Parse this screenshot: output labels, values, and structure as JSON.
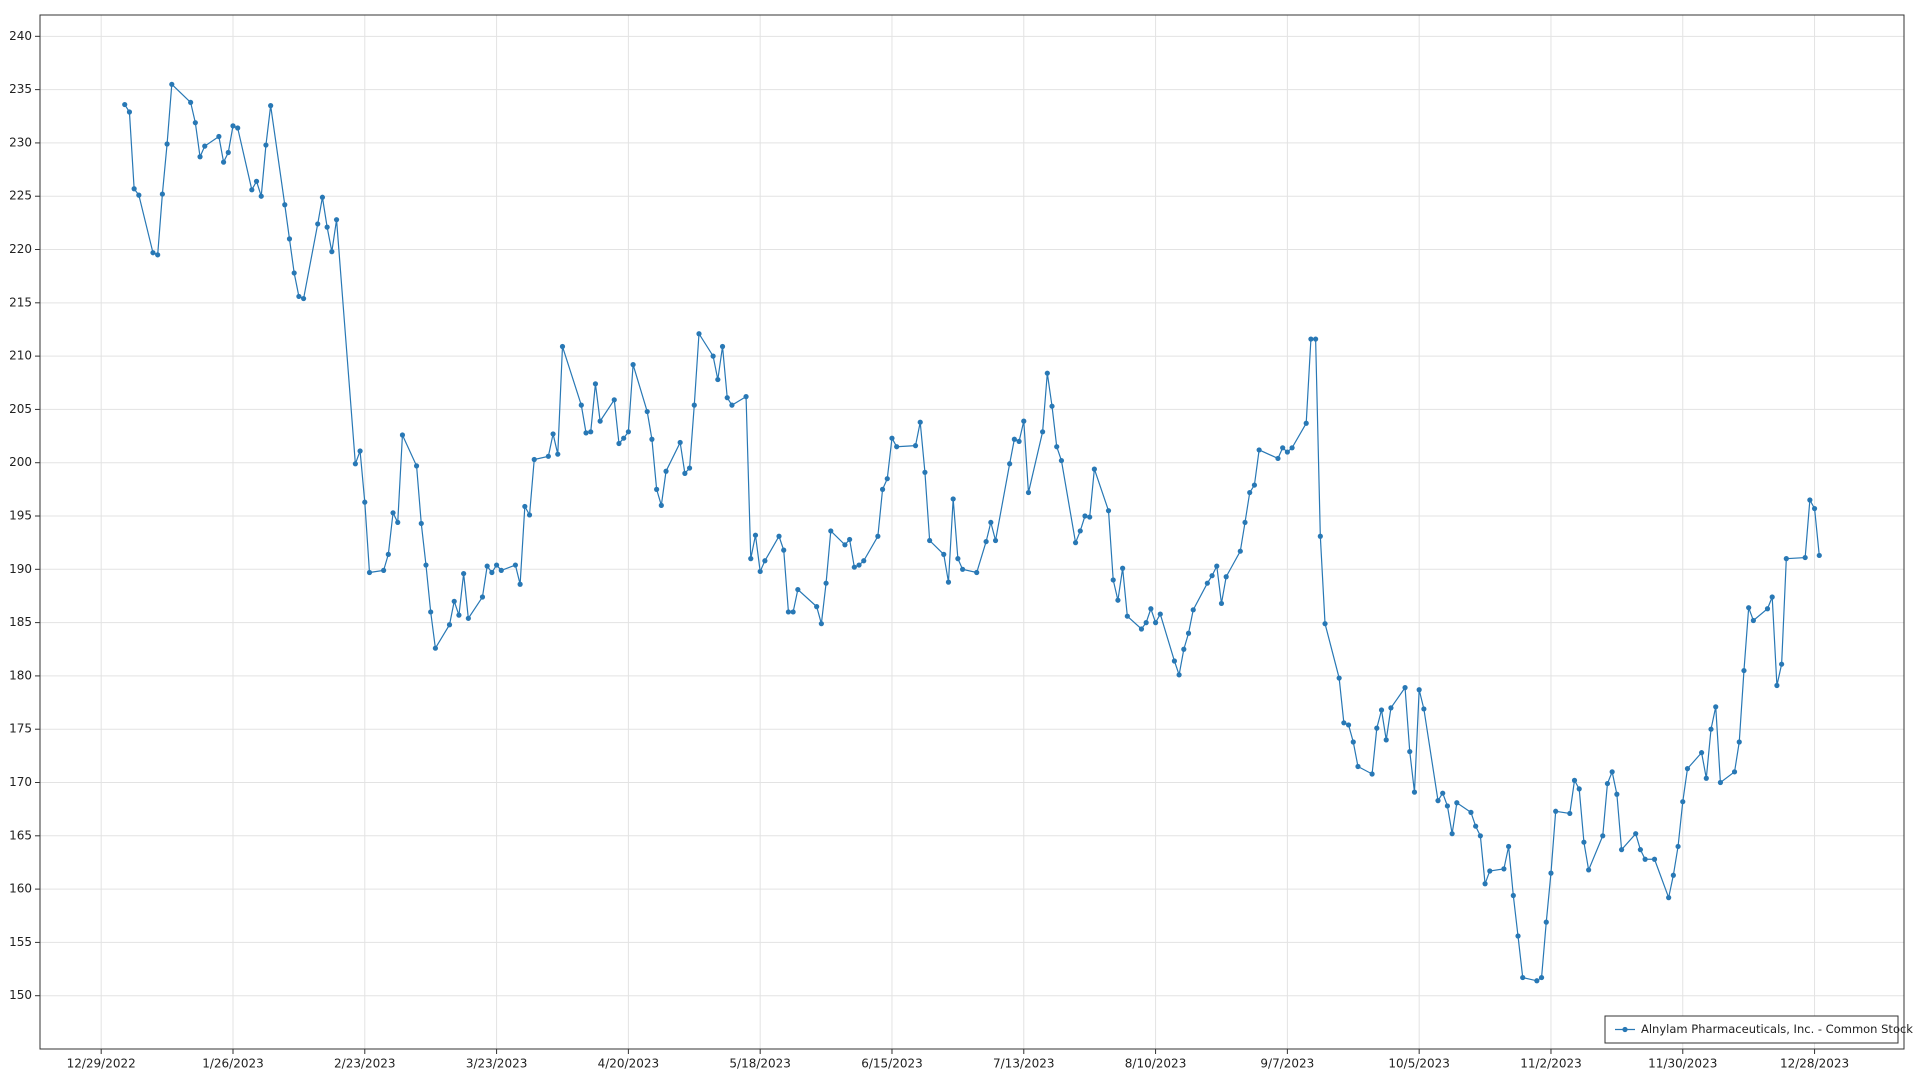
{
  "chart_data": {
    "type": "line",
    "x": [
      "1/3/2023",
      "1/4/2023",
      "1/5/2023",
      "1/6/2023",
      "1/9/2023",
      "1/10/2023",
      "1/11/2023",
      "1/12/2023",
      "1/13/2023",
      "1/17/2023",
      "1/18/2023",
      "1/19/2023",
      "1/20/2023",
      "1/23/2023",
      "1/24/2023",
      "1/25/2023",
      "1/26/2023",
      "1/27/2023",
      "1/30/2023",
      "1/31/2023",
      "2/1/2023",
      "2/2/2023",
      "2/3/2023",
      "2/6/2023",
      "2/7/2023",
      "2/8/2023",
      "2/9/2023",
      "2/10/2023",
      "2/13/2023",
      "2/14/2023",
      "2/15/2023",
      "2/16/2023",
      "2/17/2023",
      "2/21/2023",
      "2/22/2023",
      "2/23/2023",
      "2/24/2023",
      "2/27/2023",
      "2/28/2023",
      "3/1/2023",
      "3/2/2023",
      "3/3/2023",
      "3/6/2023",
      "3/7/2023",
      "3/8/2023",
      "3/9/2023",
      "3/10/2023",
      "3/13/2023",
      "3/14/2023",
      "3/15/2023",
      "3/16/2023",
      "3/17/2023",
      "3/20/2023",
      "3/21/2023",
      "3/22/2023",
      "3/23/2023",
      "3/24/2023",
      "3/27/2023",
      "3/28/2023",
      "3/29/2023",
      "3/30/2023",
      "3/31/2023",
      "4/3/2023",
      "4/4/2023",
      "4/5/2023",
      "4/6/2023",
      "4/10/2023",
      "4/11/2023",
      "4/12/2023",
      "4/13/2023",
      "4/14/2023",
      "4/17/2023",
      "4/18/2023",
      "4/19/2023",
      "4/20/2023",
      "4/21/2023",
      "4/24/2023",
      "4/25/2023",
      "4/26/2023",
      "4/27/2023",
      "4/28/2023",
      "5/1/2023",
      "5/2/2023",
      "5/3/2023",
      "5/4/2023",
      "5/5/2023",
      "5/8/2023",
      "5/9/2023",
      "5/10/2023",
      "5/11/2023",
      "5/12/2023",
      "5/15/2023",
      "5/16/2023",
      "5/17/2023",
      "5/18/2023",
      "5/19/2023",
      "5/22/2023",
      "5/23/2023",
      "5/24/2023",
      "5/25/2023",
      "5/26/2023",
      "5/30/2023",
      "5/31/2023",
      "6/1/2023",
      "6/2/2023",
      "6/5/2023",
      "6/6/2023",
      "6/7/2023",
      "6/8/2023",
      "6/9/2023",
      "6/12/2023",
      "6/13/2023",
      "6/14/2023",
      "6/15/2023",
      "6/16/2023",
      "6/20/2023",
      "6/21/2023",
      "6/22/2023",
      "6/23/2023",
      "6/26/2023",
      "6/27/2023",
      "6/28/2023",
      "6/29/2023",
      "6/30/2023",
      "7/3/2023",
      "7/5/2023",
      "7/6/2023",
      "7/7/2023",
      "7/10/2023",
      "7/11/2023",
      "7/12/2023",
      "7/13/2023",
      "7/14/2023",
      "7/17/2023",
      "7/18/2023",
      "7/19/2023",
      "7/20/2023",
      "7/21/2023",
      "7/24/2023",
      "7/25/2023",
      "7/26/2023",
      "7/27/2023",
      "7/28/2023",
      "7/31/2023",
      "8/1/2023",
      "8/2/2023",
      "8/3/2023",
      "8/4/2023",
      "8/7/2023",
      "8/8/2023",
      "8/9/2023",
      "8/10/2023",
      "8/11/2023",
      "8/14/2023",
      "8/15/2023",
      "8/16/2023",
      "8/17/2023",
      "8/18/2023",
      "8/21/2023",
      "8/22/2023",
      "8/23/2023",
      "8/24/2023",
      "8/25/2023",
      "8/28/2023",
      "8/29/2023",
      "8/30/2023",
      "8/31/2023",
      "9/1/2023",
      "9/5/2023",
      "9/6/2023",
      "9/7/2023",
      "9/8/2023",
      "9/11/2023",
      "9/12/2023",
      "9/13/2023",
      "9/14/2023",
      "9/15/2023",
      "9/18/2023",
      "9/19/2023",
      "9/20/2023",
      "9/21/2023",
      "9/22/2023",
      "9/25/2023",
      "9/26/2023",
      "9/27/2023",
      "9/28/2023",
      "9/29/2023",
      "10/2/2023",
      "10/3/2023",
      "10/4/2023",
      "10/5/2023",
      "10/6/2023",
      "10/9/2023",
      "10/10/2023",
      "10/11/2023",
      "10/12/2023",
      "10/13/2023",
      "10/16/2023",
      "10/17/2023",
      "10/18/2023",
      "10/19/2023",
      "10/20/2023",
      "10/23/2023",
      "10/24/2023",
      "10/25/2023",
      "10/26/2023",
      "10/27/2023",
      "10/30/2023",
      "10/31/2023",
      "11/1/2023",
      "11/2/2023",
      "11/3/2023",
      "11/6/2023",
      "11/7/2023",
      "11/8/2023",
      "11/9/2023",
      "11/10/2023",
      "11/13/2023",
      "11/14/2023",
      "11/15/2023",
      "11/16/2023",
      "11/17/2023",
      "11/20/2023",
      "11/21/2023",
      "11/22/2023",
      "11/24/2023",
      "11/27/2023",
      "11/28/2023",
      "11/29/2023",
      "11/30/2023",
      "12/1/2023",
      "12/4/2023",
      "12/5/2023",
      "12/6/2023",
      "12/7/2023",
      "12/8/2023",
      "12/11/2023",
      "12/12/2023",
      "12/13/2023",
      "12/14/2023",
      "12/15/2023",
      "12/18/2023",
      "12/19/2023",
      "12/20/2023",
      "12/21/2023",
      "12/22/2023",
      "12/26/2023",
      "12/27/2023",
      "12/28/2023",
      "12/29/2023"
    ],
    "series": [
      {
        "name": "Alnylam Pharmaceuticals, Inc. - Common Stock",
        "color": "#2878b5",
        "values": [
          233.6,
          232.9,
          225.7,
          225.1,
          219.7,
          219.5,
          225.2,
          229.9,
          235.5,
          233.8,
          231.9,
          228.7,
          229.7,
          230.6,
          228.2,
          229.1,
          231.6,
          231.4,
          225.6,
          226.4,
          225.0,
          229.8,
          233.5,
          224.2,
          221.0,
          217.8,
          215.6,
          215.4,
          222.4,
          224.9,
          222.1,
          219.8,
          222.8,
          199.9,
          201.1,
          196.3,
          189.7,
          189.9,
          191.4,
          195.3,
          194.4,
          202.6,
          199.7,
          194.3,
          190.4,
          186.0,
          182.6,
          184.8,
          187.0,
          185.7,
          189.6,
          185.4,
          187.4,
          190.3,
          189.7,
          190.4,
          189.9,
          190.4,
          188.6,
          195.9,
          195.1,
          200.3,
          200.6,
          202.7,
          200.8,
          210.9,
          205.4,
          202.8,
          202.9,
          207.4,
          203.9,
          205.9,
          201.8,
          202.3,
          202.9,
          209.2,
          204.8,
          202.2,
          197.5,
          196.0,
          199.2,
          201.9,
          199.0,
          199.5,
          205.4,
          212.1,
          210.0,
          207.8,
          210.9,
          206.1,
          205.4,
          206.2,
          191.0,
          193.2,
          189.8,
          190.8,
          193.1,
          191.8,
          186.0,
          186.0,
          188.1,
          186.5,
          184.9,
          188.7,
          193.6,
          192.3,
          192.8,
          190.2,
          190.4,
          190.8,
          193.1,
          197.5,
          198.5,
          202.3,
          201.5,
          201.6,
          203.8,
          199.1,
          192.7,
          191.4,
          188.8,
          196.6,
          191.0,
          190.0,
          189.7,
          192.6,
          194.4,
          192.7,
          199.9,
          202.2,
          202.0,
          203.9,
          197.2,
          202.9,
          208.4,
          205.3,
          201.5,
          200.2,
          192.5,
          193.6,
          195.0,
          194.9,
          199.4,
          195.5,
          189.0,
          187.1,
          190.1,
          185.6,
          184.4,
          185.0,
          186.3,
          185.0,
          185.8,
          181.4,
          180.1,
          182.5,
          184.0,
          186.2,
          188.7,
          189.4,
          190.3,
          186.8,
          189.3,
          191.7,
          194.4,
          197.2,
          197.9,
          201.2,
          200.4,
          201.4,
          201.0,
          201.4,
          203.7,
          211.6,
          211.6,
          193.1,
          184.9,
          179.8,
          175.6,
          175.4,
          173.8,
          171.5,
          170.8,
          175.1,
          176.8,
          174.0,
          177.0,
          178.9,
          172.9,
          169.1,
          178.7,
          176.9,
          168.3,
          169.0,
          167.8,
          165.2,
          168.1,
          167.2,
          165.9,
          165.0,
          160.5,
          161.7,
          161.9,
          164.0,
          159.4,
          155.6,
          151.7,
          151.4,
          151.7,
          156.9,
          161.5,
          167.3,
          167.1,
          170.2,
          169.4,
          164.4,
          161.8,
          165.0,
          169.9,
          171.0,
          168.9,
          163.7,
          165.2,
          163.7,
          162.8,
          162.8,
          159.2,
          161.3,
          164.0,
          168.2,
          171.3,
          172.8,
          170.4,
          175.0,
          177.1,
          170.0,
          171.0,
          173.8,
          180.5,
          186.4,
          185.2,
          186.3,
          187.4,
          179.1,
          181.1,
          191.0,
          191.1,
          196.5,
          195.7,
          191.3
        ]
      }
    ],
    "xlim": [
      "12/16/2022",
      "1/16/2024"
    ],
    "xticks": [
      "12/29/2022",
      "1/26/2023",
      "2/23/2023",
      "3/23/2023",
      "4/20/2023",
      "5/18/2023",
      "6/15/2023",
      "7/13/2023",
      "8/10/2023",
      "9/7/2023",
      "10/5/2023",
      "11/2/2023",
      "11/30/2023",
      "12/28/2023"
    ],
    "ylim": [
      145,
      242
    ],
    "yticks": [
      150,
      155,
      160,
      165,
      170,
      175,
      180,
      185,
      190,
      195,
      200,
      205,
      210,
      215,
      220,
      225,
      230,
      235,
      240
    ],
    "grid": true,
    "legend": "lower right"
  }
}
